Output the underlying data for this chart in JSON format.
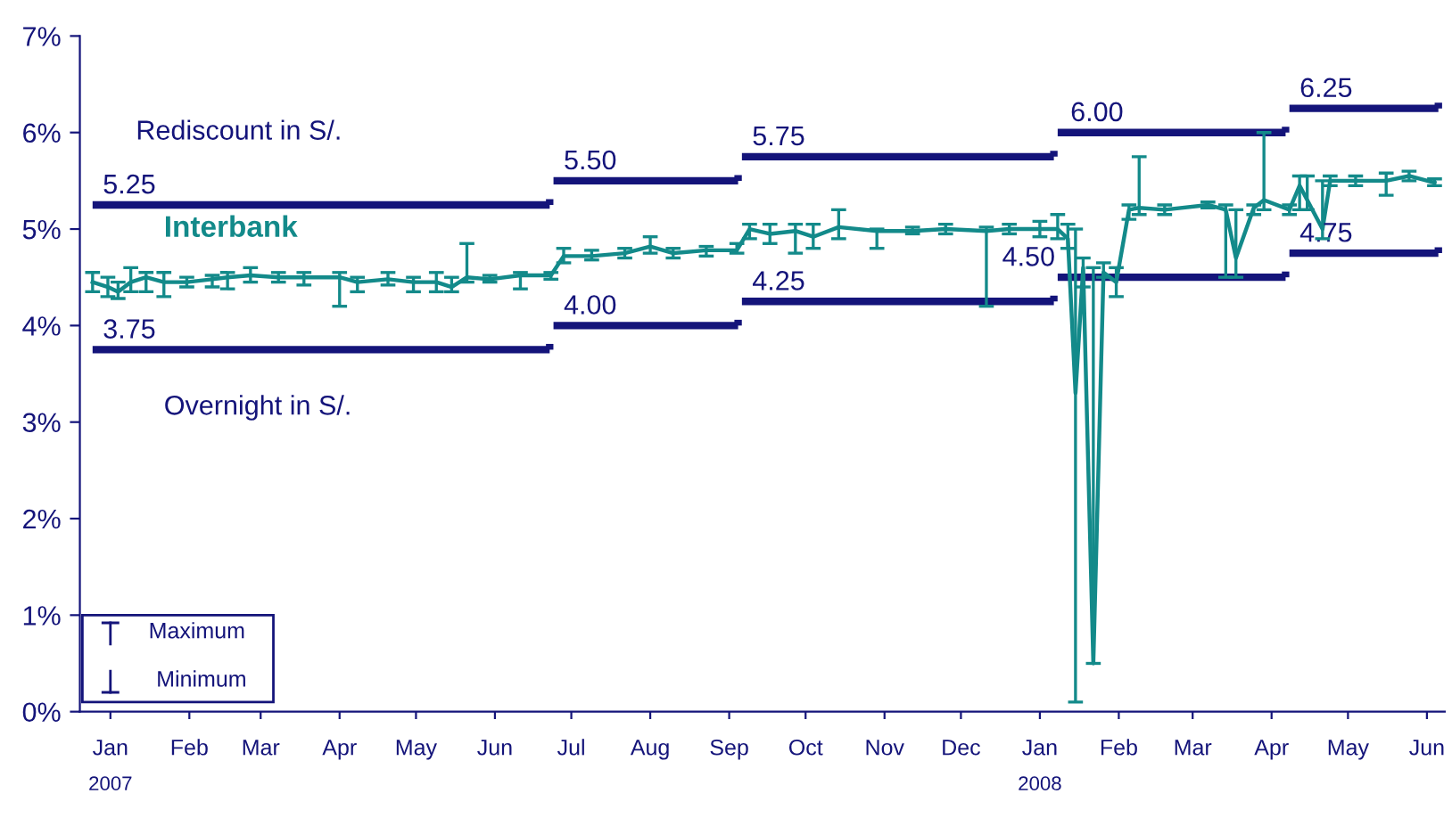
{
  "chart_data": {
    "type": "line",
    "xlim": [
      "2007-01-03",
      "2008-06-22"
    ],
    "ylim": [
      0,
      7
    ],
    "xticks": [
      {
        "value": "2007-01-15",
        "label": "Jan"
      },
      {
        "value": "2007-02-15",
        "label": "Feb"
      },
      {
        "value": "2007-03-15",
        "label": "Mar"
      },
      {
        "value": "2007-04-15",
        "label": "Apr"
      },
      {
        "value": "2007-05-15",
        "label": "May"
      },
      {
        "value": "2007-06-15",
        "label": "Jun"
      },
      {
        "value": "2007-07-15",
        "label": "Jul"
      },
      {
        "value": "2007-08-15",
        "label": "Aug"
      },
      {
        "value": "2007-09-15",
        "label": "Sep"
      },
      {
        "value": "2007-10-15",
        "label": "Oct"
      },
      {
        "value": "2007-11-15",
        "label": "Nov"
      },
      {
        "value": "2007-12-15",
        "label": "Dec"
      },
      {
        "value": "2008-01-15",
        "label": "Jan"
      },
      {
        "value": "2008-02-15",
        "label": "Feb"
      },
      {
        "value": "2008-03-15",
        "label": "Mar"
      },
      {
        "value": "2008-04-15",
        "label": "Apr"
      },
      {
        "value": "2008-05-15",
        "label": "May"
      },
      {
        "value": "2008-06-15",
        "label": "Jun"
      }
    ],
    "yticks": [
      {
        "value": 0,
        "label": "0%"
      },
      {
        "value": 1,
        "label": "1%"
      },
      {
        "value": 2,
        "label": "2%"
      },
      {
        "value": 3,
        "label": "3%"
      },
      {
        "value": 4,
        "label": "4%"
      },
      {
        "value": 5,
        "label": "5%"
      },
      {
        "value": 6,
        "label": "6%"
      },
      {
        "value": 7,
        "label": "7%"
      }
    ],
    "series": [
      {
        "name": "Rediscount in S/.",
        "type": "step",
        "color": "#14147a",
        "x": [
          "2007-01-08",
          "2007-07-08",
          "2007-09-20",
          "2008-01-22",
          "2008-04-22",
          "2008-06-21"
        ],
        "values": [
          5.25,
          5.5,
          5.75,
          6.0,
          6.25,
          6.25
        ]
      },
      {
        "name": "Interbank",
        "color": "#138a8a",
        "x": [
          "2007-01-08",
          "2007-01-14",
          "2007-01-18",
          "2007-01-23",
          "2007-01-29",
          "2007-02-05",
          "2007-02-14",
          "2007-02-24",
          "2007-03-02",
          "2007-03-11",
          "2007-03-22",
          "2007-04-01",
          "2007-04-15",
          "2007-04-22",
          "2007-05-04",
          "2007-05-14",
          "2007-05-23",
          "2007-05-29",
          "2007-06-04",
          "2007-06-13",
          "2007-06-25",
          "2007-07-07",
          "2007-07-12",
          "2007-07-23",
          "2007-08-05",
          "2007-08-15",
          "2007-08-24",
          "2007-09-06",
          "2007-09-18",
          "2007-09-23",
          "2007-10-01",
          "2007-10-11",
          "2007-10-18",
          "2007-10-28",
          "2007-11-12",
          "2007-11-26",
          "2007-12-09",
          "2007-12-25",
          "2008-01-03",
          "2008-01-15",
          "2008-01-22",
          "2008-01-26",
          "2008-01-29",
          "2008-02-01",
          "2008-02-05",
          "2008-02-09",
          "2008-02-14",
          "2008-02-19",
          "2008-02-23",
          "2008-03-04",
          "2008-03-21",
          "2008-03-28",
          "2008-04-01",
          "2008-04-08",
          "2008-04-12",
          "2008-04-22",
          "2008-04-26",
          "2008-04-29",
          "2008-05-05",
          "2008-05-08",
          "2008-05-18",
          "2008-05-30",
          "2008-06-08",
          "2008-06-18"
        ],
        "values": [
          4.45,
          4.4,
          4.35,
          4.45,
          4.5,
          4.45,
          4.45,
          4.48,
          4.5,
          4.52,
          4.5,
          4.5,
          4.5,
          4.45,
          4.48,
          4.45,
          4.45,
          4.4,
          4.5,
          4.48,
          4.52,
          4.52,
          4.72,
          4.72,
          4.75,
          4.82,
          4.75,
          4.78,
          4.78,
          5.0,
          4.95,
          4.98,
          4.92,
          5.02,
          4.98,
          4.98,
          5.0,
          4.98,
          5.0,
          5.0,
          5.0,
          4.9,
          3.3,
          4.6,
          0.5,
          4.55,
          4.45,
          5.2,
          5.22,
          5.2,
          5.25,
          5.2,
          4.7,
          5.22,
          5.3,
          5.2,
          5.45,
          5.3,
          5.0,
          5.5,
          5.5,
          5.5,
          5.55,
          5.48
        ],
        "errors": [
          [
            4.35,
            4.55
          ],
          [
            4.3,
            4.5
          ],
          [
            4.28,
            4.45
          ],
          [
            4.35,
            4.6
          ],
          [
            4.35,
            4.55
          ],
          [
            4.3,
            4.55
          ],
          [
            4.4,
            4.5
          ],
          [
            4.4,
            4.52
          ],
          [
            4.38,
            4.55
          ],
          [
            4.45,
            4.6
          ],
          [
            4.45,
            4.55
          ],
          [
            4.42,
            4.55
          ],
          [
            4.2,
            4.55
          ],
          [
            4.35,
            4.5
          ],
          [
            4.42,
            4.55
          ],
          [
            4.35,
            4.5
          ],
          [
            4.35,
            4.55
          ],
          [
            4.35,
            4.5
          ],
          [
            4.45,
            4.85
          ],
          [
            4.45,
            4.52
          ],
          [
            4.38,
            4.55
          ],
          [
            4.48,
            4.55
          ],
          [
            4.65,
            4.8
          ],
          [
            4.68,
            4.78
          ],
          [
            4.7,
            4.8
          ],
          [
            4.75,
            4.92
          ],
          [
            4.7,
            4.8
          ],
          [
            4.72,
            4.82
          ],
          [
            4.75,
            4.85
          ],
          [
            4.9,
            5.05
          ],
          [
            4.85,
            5.05
          ],
          [
            4.75,
            5.05
          ],
          [
            4.8,
            5.05
          ],
          [
            4.9,
            5.2
          ],
          [
            4.8,
            5.0
          ],
          [
            4.95,
            5.02
          ],
          [
            4.95,
            5.05
          ],
          [
            4.2,
            5.02
          ],
          [
            4.95,
            5.05
          ],
          [
            4.92,
            5.08
          ],
          [
            4.9,
            5.15
          ],
          [
            4.8,
            5.05
          ],
          [
            0.1,
            5.0
          ],
          [
            4.4,
            4.7
          ],
          [
            0.5,
            4.6
          ],
          [
            4.5,
            4.65
          ],
          [
            4.3,
            4.6
          ],
          [
            5.1,
            5.25
          ],
          [
            5.15,
            5.75
          ],
          [
            5.15,
            5.25
          ],
          [
            5.22,
            5.28
          ],
          [
            4.5,
            5.25
          ],
          [
            4.5,
            5.2
          ],
          [
            5.15,
            5.25
          ],
          [
            5.2,
            6.0
          ],
          [
            5.15,
            5.25
          ],
          [
            5.2,
            5.55
          ],
          [
            5.2,
            5.55
          ],
          [
            4.9,
            5.5
          ],
          [
            5.45,
            5.55
          ],
          [
            5.45,
            5.55
          ],
          [
            5.35,
            5.58
          ],
          [
            5.5,
            5.6
          ],
          [
            5.45,
            5.52
          ]
        ]
      },
      {
        "name": "Overnight in S/.",
        "type": "step",
        "color": "#14147a",
        "x": [
          "2007-01-08",
          "2007-07-08",
          "2007-09-20",
          "2008-01-22",
          "2008-04-22",
          "2008-06-21"
        ],
        "values": [
          3.75,
          4.0,
          4.25,
          4.5,
          4.75,
          4.75
        ]
      }
    ],
    "annotations": [
      {
        "text": "5.25",
        "x": "2007-01-12",
        "y": 5.25
      },
      {
        "text": "5.50",
        "x": "2007-07-12",
        "y": 5.5
      },
      {
        "text": "5.75",
        "x": "2007-09-24",
        "y": 5.75
      },
      {
        "text": "6.00",
        "x": "2008-01-27",
        "y": 6.0
      },
      {
        "text": "6.25",
        "x": "2008-04-26",
        "y": 6.25
      },
      {
        "text": "3.75",
        "x": "2007-01-12",
        "y": 3.75
      },
      {
        "text": "4.00",
        "x": "2007-07-12",
        "y": 4.0
      },
      {
        "text": "4.25",
        "x": "2007-09-24",
        "y": 4.25
      },
      {
        "text": "4.50",
        "x": "2008-01-21",
        "y": 4.5
      },
      {
        "text": "4.75",
        "x": "2008-04-26",
        "y": 4.75
      },
      "Maximum",
      "Minimum",
      "2007",
      "2008"
    ],
    "grid": false
  }
}
